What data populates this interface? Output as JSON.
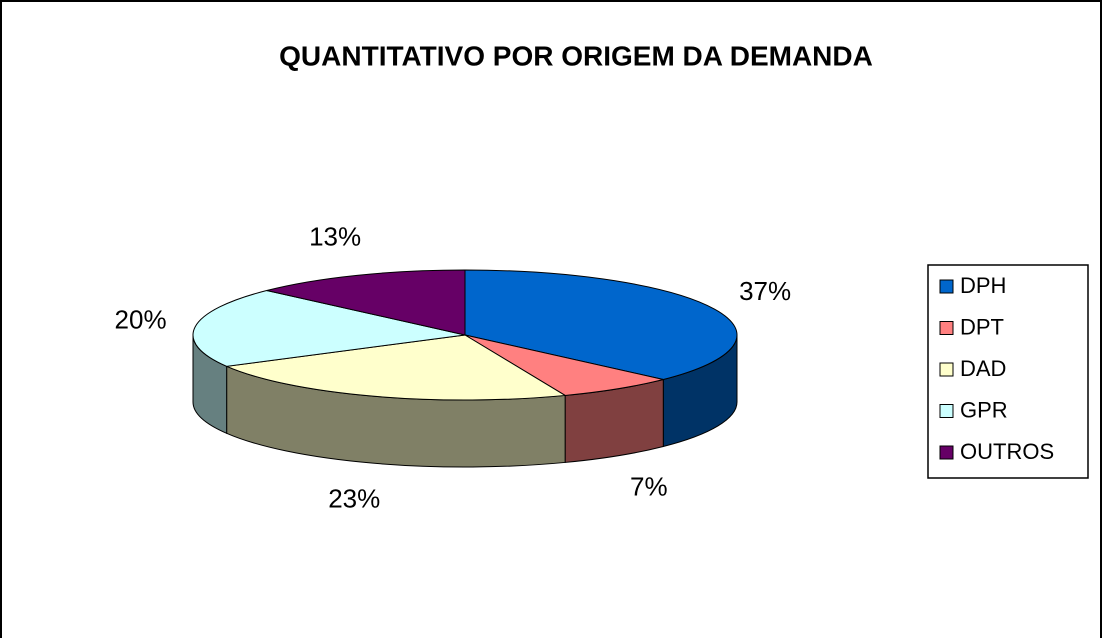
{
  "chart_data": {
    "type": "pie",
    "title": "QUANTITATIVO POR ORIGEM DA DEMANDA",
    "categories": [
      "DPH",
      "DPT",
      "DAD",
      "GPR",
      "OUTROS"
    ],
    "values": [
      37,
      7,
      23,
      20,
      13
    ],
    "value_labels": [
      "37%",
      "7%",
      "23%",
      "20%",
      "13%"
    ],
    "colors": [
      "#0066cc",
      "#ff8080",
      "#ffffcc",
      "#ccffff",
      "#660066"
    ],
    "legend": "right"
  }
}
